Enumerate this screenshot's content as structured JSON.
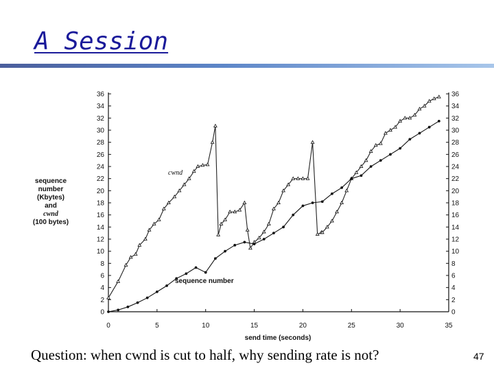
{
  "slide": {
    "title": "A Session",
    "question": "Question: when cwnd is cut to half, why sending rate is not?",
    "page_number": "47"
  },
  "chart_data": {
    "type": "line",
    "xlabel": "send time (seconds)",
    "ylabel_lines": [
      "sequence",
      "number",
      "(Kbytes)",
      "and",
      "cwnd",
      "(100 bytes)"
    ],
    "xlim": [
      0,
      35
    ],
    "ylim": [
      0,
      36
    ],
    "x_ticks": [
      0,
      5,
      10,
      15,
      20,
      25,
      30,
      35
    ],
    "y_ticks": [
      0,
      2,
      4,
      6,
      8,
      10,
      12,
      14,
      16,
      18,
      20,
      22,
      24,
      26,
      28,
      30,
      32,
      34,
      36
    ],
    "grid": false,
    "annotations": {
      "cwnd": "cwnd",
      "sequence": "sequence number"
    },
    "series": [
      {
        "name": "cwnd",
        "marker": "triangle",
        "x": [
          0,
          1,
          1.8,
          2.3,
          2.8,
          3.2,
          3.8,
          4.2,
          4.7,
          5.2,
          5.7,
          6.2,
          6.8,
          7.3,
          7.8,
          8.3,
          8.8,
          9.2,
          9.7,
          10.2,
          10.7,
          11.0,
          11.3,
          11.6,
          12.0,
          12.5,
          13.0,
          13.5,
          14.0,
          14.3,
          14.6,
          15.0,
          15.5,
          16.0,
          16.5,
          17.0,
          17.5,
          18.0,
          18.5,
          19.0,
          19.5,
          20.0,
          20.5,
          21.0,
          21.5,
          21.9,
          22.0,
          22.5,
          23.0,
          23.5,
          24.0,
          24.5,
          25.0,
          25.5,
          26.0,
          26.5,
          27.0,
          27.5,
          28.0,
          28.5,
          29.0,
          29.5,
          30.0,
          30.5,
          31.0,
          31.5,
          32.0,
          32.5,
          33.0,
          33.5,
          34.0
        ],
        "y": [
          2.3,
          5,
          7.7,
          9,
          9.5,
          11,
          12,
          13.5,
          14.5,
          15.2,
          17,
          18,
          19,
          20,
          21,
          22,
          23.2,
          24,
          24.2,
          24.3,
          28,
          30.7,
          12.7,
          14.5,
          15.2,
          16.5,
          16.5,
          16.8,
          18,
          13.5,
          10.5,
          11.5,
          12.2,
          13.2,
          14.5,
          17,
          18,
          20,
          21,
          22,
          22,
          22,
          22,
          28,
          12.8,
          13.1,
          13.1,
          14,
          15,
          16.5,
          18,
          20,
          22,
          23,
          24,
          25,
          26.5,
          27.5,
          27.8,
          29.5,
          30,
          30.5,
          31.5,
          32,
          32,
          32.5,
          33.5,
          34,
          34.8,
          35.2,
          35.5
        ],
        "color": "#222222"
      },
      {
        "name": "sequence number",
        "marker": "dot",
        "x": [
          0,
          1,
          2,
          3,
          4,
          5,
          6,
          7,
          8,
          9,
          10,
          11,
          12,
          13,
          14,
          15,
          16,
          17,
          18,
          19,
          20,
          21,
          22,
          23,
          24,
          25,
          26,
          27,
          28,
          29,
          30,
          31,
          32,
          33,
          34
        ],
        "y": [
          0,
          0.3,
          0.8,
          1.5,
          2.3,
          3.3,
          4.3,
          5.5,
          6.3,
          7.3,
          6.5,
          8.8,
          10.0,
          11.0,
          11.5,
          11.2,
          12.0,
          13.0,
          14.0,
          16.0,
          17.5,
          18.0,
          18.2,
          19.5,
          20.5,
          22.0,
          22.5,
          24.0,
          25.0,
          26.0,
          27.0,
          28.5,
          29.5,
          30.5,
          31.5
        ],
        "color": "#111111"
      }
    ]
  }
}
